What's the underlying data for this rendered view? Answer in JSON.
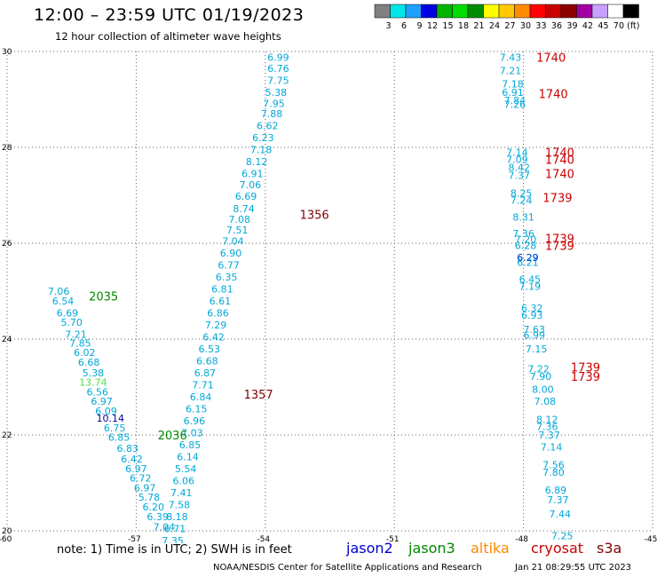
{
  "title": "12:00 – 23:59 UTC 01/19/2023",
  "subtitle": "12 hour collection of altimeter wave heights",
  "note": "note:  1) Time is in UTC;  2) SWH is in feet",
  "satellites": [
    {
      "name": "jason2",
      "color": "#0000cc"
    },
    {
      "name": "jason3",
      "color": "#008800"
    },
    {
      "name": "altika",
      "color": "#ff8800"
    },
    {
      "name": "cryosat",
      "color": "#cc0000"
    },
    {
      "name": "s3a",
      "color": "#800000"
    }
  ],
  "credit": "NOAA/NESDIS Center for Satellite Applications and Research",
  "timestamp": "Jan 21 08:29:55 UTC 2023",
  "legend": {
    "labels": [
      "3",
      "6",
      "9",
      "12",
      "15",
      "18",
      "21",
      "24",
      "27",
      "30",
      "33",
      "36",
      "39",
      "42",
      "45",
      "70",
      "(ft)"
    ],
    "colors": [
      "#808080",
      "#00e5e5",
      "#1ea0ff",
      "#0000e0",
      "#00b400",
      "#00dc00",
      "#008c00",
      "#ffff00",
      "#ffc800",
      "#ff8c00",
      "#ff0000",
      "#c80000",
      "#8c0000",
      "#a000a0",
      "#c8a0ff",
      "#ffffff",
      "#000000"
    ]
  },
  "chart_data": {
    "type": "scatter",
    "xlim": [
      -60,
      -45
    ],
    "ylim": [
      20,
      30
    ],
    "xticks": [
      "-60",
      "-57",
      "-54",
      "-51",
      "-48",
      "-45"
    ],
    "yticks": [
      "20",
      "22",
      "24",
      "26",
      "28",
      "30"
    ],
    "grid": true,
    "series": [
      {
        "track": "A",
        "color": "#00a8d8",
        "points": [
          [
            -58.8,
            25.0,
            "7.06"
          ],
          [
            -58.7,
            24.8,
            "6.54"
          ],
          [
            -58.6,
            24.55,
            "6.69"
          ],
          [
            -58.5,
            24.35,
            "5.70"
          ],
          [
            -58.4,
            24.1,
            "7.21"
          ],
          [
            -58.3,
            23.92,
            "7.85"
          ],
          [
            -58.2,
            23.72,
            "6.02"
          ],
          [
            -58.1,
            23.52,
            "6.68"
          ],
          [
            -58.0,
            23.3,
            "5.38"
          ],
          [
            -57.9,
            22.9,
            "6.56"
          ],
          [
            -57.8,
            22.7,
            "6.97"
          ],
          [
            -57.7,
            22.5,
            "6.09"
          ],
          [
            -57.5,
            22.15,
            "6.75"
          ],
          [
            -57.4,
            21.95,
            "6.85"
          ],
          [
            -57.2,
            21.72,
            "6.83"
          ],
          [
            -57.1,
            21.5,
            "6.42"
          ],
          [
            -57.0,
            21.3,
            "6.97"
          ],
          [
            -56.9,
            21.1,
            "6.72"
          ],
          [
            -56.8,
            20.9,
            "6.97"
          ],
          [
            -56.7,
            20.7,
            "5.78"
          ],
          [
            -56.6,
            20.5,
            "6.20"
          ],
          [
            -56.5,
            20.3,
            "6.39"
          ],
          [
            -56.35,
            20.08,
            "7.04"
          ]
        ]
      },
      {
        "track": "A-hi",
        "color": "#50e050",
        "points": [
          [
            -58.0,
            23.1,
            "13.74"
          ]
        ]
      },
      {
        "track": "A-dk",
        "color": "#000090",
        "points": [
          [
            -57.6,
            22.35,
            "10.14"
          ]
        ]
      },
      {
        "track": "B",
        "color": "#00a8d8",
        "points": [
          [
            -53.7,
            29.88,
            "6.99"
          ],
          [
            -53.7,
            29.65,
            "6.76"
          ],
          [
            -53.7,
            29.4,
            "7.75"
          ],
          [
            -53.75,
            29.15,
            "5.38"
          ],
          [
            -53.8,
            28.92,
            "7.95"
          ],
          [
            -53.85,
            28.7,
            "7.88"
          ],
          [
            -53.95,
            28.45,
            "6.62"
          ],
          [
            -54.05,
            28.2,
            "6.23"
          ],
          [
            -54.1,
            27.95,
            "7.18"
          ],
          [
            -54.2,
            27.7,
            "8.12"
          ],
          [
            -54.3,
            27.45,
            "6.91"
          ],
          [
            -54.35,
            27.22,
            "7.06"
          ],
          [
            -54.45,
            26.98,
            "6.69"
          ],
          [
            -54.5,
            26.72,
            "8.74"
          ],
          [
            -54.6,
            26.5,
            "7.08"
          ],
          [
            -54.65,
            26.28,
            "7.51"
          ],
          [
            -54.75,
            26.05,
            "7.04"
          ],
          [
            -54.8,
            25.8,
            "6.90"
          ],
          [
            -54.85,
            25.55,
            "6.77"
          ],
          [
            -54.9,
            25.3,
            "6.35"
          ],
          [
            -55.0,
            25.05,
            "6.81"
          ],
          [
            -55.05,
            24.8,
            "6.61"
          ],
          [
            -55.1,
            24.55,
            "6.86"
          ],
          [
            -55.15,
            24.3,
            "7.29"
          ],
          [
            -55.2,
            24.05,
            "6.42"
          ],
          [
            -55.3,
            23.8,
            "6.53"
          ],
          [
            -55.35,
            23.55,
            "6.68"
          ],
          [
            -55.4,
            23.3,
            "6.87"
          ],
          [
            -55.45,
            23.05,
            "7.71"
          ],
          [
            -55.5,
            22.8,
            "6.84"
          ],
          [
            -55.6,
            22.55,
            "6.15"
          ],
          [
            -55.65,
            22.3,
            "6.96"
          ],
          [
            -55.7,
            22.05,
            "7.03"
          ],
          [
            -55.75,
            21.8,
            "6.85"
          ],
          [
            -55.8,
            21.55,
            "6.14"
          ],
          [
            -55.85,
            21.3,
            "5.54"
          ],
          [
            -55.9,
            21.05,
            "6.06"
          ],
          [
            -55.95,
            20.8,
            "7.41"
          ],
          [
            -56.0,
            20.55,
            "7.58"
          ],
          [
            -56.05,
            20.3,
            "8.18"
          ],
          [
            -56.1,
            20.05,
            "6.71"
          ],
          [
            -56.15,
            19.8,
            "7.35"
          ],
          [
            -56.2,
            19.55,
            "8.76"
          ]
        ]
      },
      {
        "track": "C",
        "color": "#00a8d8",
        "points": [
          [
            -48.3,
            29.88,
            "7.43"
          ],
          [
            -48.3,
            29.6,
            "7.21"
          ],
          [
            -48.25,
            29.32,
            "7.18"
          ],
          [
            -48.25,
            29.15,
            "6.91"
          ],
          [
            -48.2,
            28.98,
            "7.84"
          ],
          [
            -48.2,
            28.9,
            "7.26"
          ],
          [
            -48.15,
            27.9,
            "7.14"
          ],
          [
            -48.15,
            27.75,
            "7.09"
          ],
          [
            -48.1,
            27.58,
            "8.42"
          ],
          [
            -48.1,
            27.42,
            "7.37"
          ],
          [
            -48.05,
            27.05,
            "8.25"
          ],
          [
            -48.05,
            26.9,
            "7.24"
          ],
          [
            -48.0,
            26.55,
            "8.31"
          ],
          [
            -48.0,
            26.2,
            "7.36"
          ],
          [
            -47.95,
            26.08,
            "7.20"
          ],
          [
            -47.95,
            25.95,
            "6.28"
          ],
          [
            -47.9,
            25.7,
            "6.29"
          ],
          [
            -47.9,
            25.6,
            "6.21"
          ],
          [
            -47.85,
            25.25,
            "6.45"
          ],
          [
            -47.85,
            25.1,
            "7.19"
          ],
          [
            -47.8,
            24.65,
            "6.32"
          ],
          [
            -47.8,
            24.5,
            "6.93"
          ],
          [
            -47.75,
            24.2,
            "7.63"
          ],
          [
            -47.75,
            24.08,
            "6.99"
          ],
          [
            -47.7,
            23.8,
            "7.15"
          ],
          [
            -47.65,
            23.38,
            "7.22"
          ],
          [
            -47.6,
            23.22,
            "7.90"
          ],
          [
            -47.55,
            22.95,
            "8.00"
          ],
          [
            -47.5,
            22.7,
            "7.08"
          ],
          [
            -47.45,
            22.32,
            "8.12"
          ],
          [
            -47.45,
            22.18,
            "7.36"
          ],
          [
            -47.4,
            22.0,
            "7.37"
          ],
          [
            -47.35,
            21.75,
            "7.14"
          ],
          [
            -47.3,
            21.38,
            "7.56"
          ],
          [
            -47.3,
            21.22,
            "7.80"
          ],
          [
            -47.25,
            20.85,
            "6.89"
          ],
          [
            -47.2,
            20.65,
            "7.37"
          ],
          [
            -47.15,
            20.35,
            "7.44"
          ],
          [
            -47.1,
            19.9,
            "7.25"
          ],
          [
            -47.05,
            19.65,
            "6.79"
          ],
          [
            -47.0,
            19.4,
            "7.36"
          ],
          [
            -46.95,
            19.15,
            "7.73"
          ],
          [
            -46.95,
            19.05,
            "7.18"
          ]
        ]
      },
      {
        "track": "C-blue",
        "color": "#0040d0",
        "points": [
          [
            -47.9,
            25.7,
            "6.29"
          ]
        ]
      }
    ],
    "time_labels": [
      {
        "x": -58.1,
        "y": 24.9,
        "text": "2035",
        "color": "#008800"
      },
      {
        "x": -56.5,
        "y": 22.0,
        "text": "2036",
        "color": "#008800"
      },
      {
        "x": -53.2,
        "y": 26.6,
        "text": "1356",
        "color": "#800000"
      },
      {
        "x": -54.5,
        "y": 22.85,
        "text": "1357",
        "color": "#800000"
      },
      {
        "x": -55.3,
        "y": 19.6,
        "text": "1358",
        "color": "#800000"
      },
      {
        "x": -47.7,
        "y": 29.88,
        "text": "1740",
        "color": "#cc0000"
      },
      {
        "x": -47.65,
        "y": 29.12,
        "text": "1740",
        "color": "#cc0000"
      },
      {
        "x": -47.5,
        "y": 27.9,
        "text": "1740",
        "color": "#cc0000"
      },
      {
        "x": -47.5,
        "y": 27.75,
        "text": "1740",
        "color": "#cc0000"
      },
      {
        "x": -47.5,
        "y": 27.45,
        "text": "1740",
        "color": "#cc0000"
      },
      {
        "x": -47.55,
        "y": 26.95,
        "text": "1739",
        "color": "#cc0000"
      },
      {
        "x": -47.5,
        "y": 26.1,
        "text": "1739",
        "color": "#cc0000"
      },
      {
        "x": -47.5,
        "y": 25.95,
        "text": "1739",
        "color": "#cc0000"
      },
      {
        "x": -46.9,
        "y": 23.42,
        "text": "1739",
        "color": "#cc0000"
      },
      {
        "x": -46.9,
        "y": 23.22,
        "text": "1739",
        "color": "#cc0000"
      },
      {
        "x": -46.3,
        "y": 19.15,
        "text": "1738",
        "color": "#cc0000"
      },
      {
        "x": -46.3,
        "y": 19.05,
        "text": "1738",
        "color": "#cc0000"
      }
    ]
  }
}
